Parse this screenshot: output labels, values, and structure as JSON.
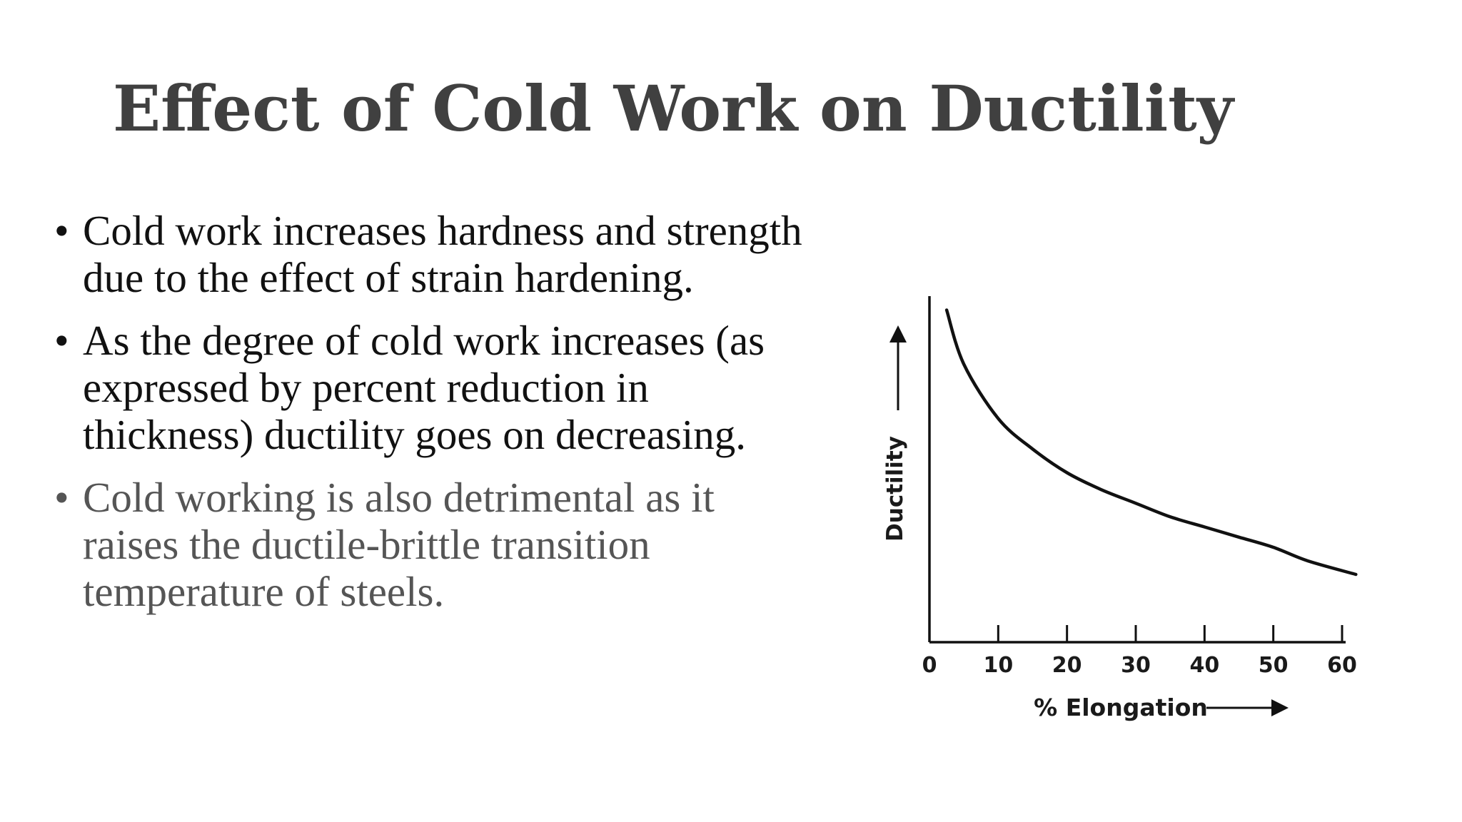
{
  "slide": {
    "title": "Effect of Cold Work on Ductility",
    "bullets": [
      {
        "text": "Cold work increases hardness and strength due to the effect of strain hardening."
      },
      {
        "text": "As the degree of cold work increases (as expressed by percent reduction in thickness) ductility goes on decreasing."
      },
      {
        "text": "Cold working is also detrimental as it raises the ductile-brittle transition temperature of steels."
      }
    ]
  },
  "chart_data": {
    "type": "line",
    "title": "",
    "xlabel": "% Elongation",
    "ylabel": "Ductility",
    "xlim": [
      0,
      60
    ],
    "ylim": [
      0,
      1
    ],
    "x_ticks": [
      0,
      10,
      20,
      30,
      40,
      50,
      60
    ],
    "tick_labels": [
      "0",
      "10",
      "20",
      "30",
      "40",
      "50",
      "60"
    ],
    "grid": false,
    "legend": "none",
    "series": [
      {
        "x": [
          2.5,
          5,
          10,
          15,
          20,
          25,
          30,
          35,
          40,
          45,
          50,
          55,
          62
        ],
        "y": [
          0.98,
          0.82,
          0.66,
          0.57,
          0.5,
          0.45,
          0.41,
          0.37,
          0.34,
          0.31,
          0.28,
          0.24,
          0.2
        ]
      }
    ]
  }
}
